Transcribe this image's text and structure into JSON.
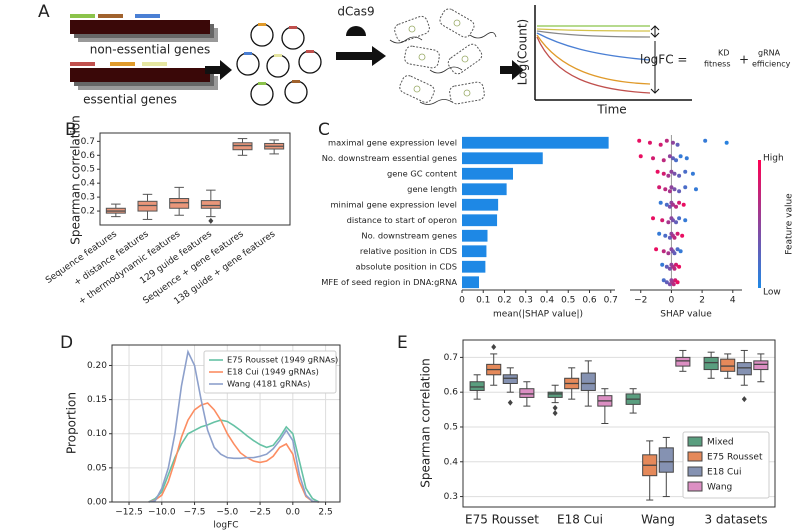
{
  "schematic": {
    "panel": "A",
    "nonessential": "non-essential genes",
    "essential": "essential genes",
    "dcas9": "dCas9",
    "ylabel": "Log(Count)",
    "xlabel": "Time",
    "formula_lhs": "logFC =",
    "term1": "KD",
    "term1_sub": "fitness",
    "plus": "+",
    "term2": "gRNA",
    "term2_sub": "efficiency"
  },
  "chart_data": [
    {
      "type": "box",
      "panel": "B",
      "ylabel": "Spearman correlation",
      "categories": [
        "Sequence features",
        "+ distance features",
        "+ thermodynamic features",
        "129 guide features",
        "Sequence + gene features",
        "138 guide + gene features"
      ],
      "color": "#e9967a",
      "edgecolor": "#555555",
      "whislo": [
        0.16,
        0.14,
        0.17,
        0.16,
        0.6,
        0.61
      ],
      "q1": [
        0.185,
        0.2,
        0.22,
        0.22,
        0.64,
        0.645
      ],
      "median": [
        0.2,
        0.24,
        0.26,
        0.24,
        0.67,
        0.665
      ],
      "q3": [
        0.22,
        0.27,
        0.29,
        0.275,
        0.69,
        0.685
      ],
      "whishi": [
        0.25,
        0.32,
        0.37,
        0.35,
        0.72,
        0.71
      ],
      "outliers": [
        [],
        [],
        [],
        [
          0.13
        ],
        [],
        []
      ],
      "ylim": [
        0.1,
        0.76
      ],
      "yticks": [
        0.2,
        0.3,
        0.4,
        0.5,
        0.6,
        0.7
      ],
      "grid": false
    },
    {
      "type": "barh",
      "panel": "C",
      "xlabel": "mean(|SHAP value|)",
      "categories": [
        "maximal gene expression level",
        "No. downstream essential genes",
        "gene GC content",
        "gene length",
        "minimal gene expression level",
        "distance to start of operon",
        "No. downstream genes",
        "relative position in CDS",
        "absolute position in CDS",
        "MFE of seed region in DNA:gRNA"
      ],
      "values": [
        0.69,
        0.38,
        0.24,
        0.21,
        0.17,
        0.165,
        0.12,
        0.115,
        0.11,
        0.08
      ],
      "color": "#1e88e5",
      "xlim": [
        0,
        0.72
      ],
      "xticks": [
        0,
        0.1,
        0.2,
        0.3,
        0.4,
        0.5,
        0.6,
        0.7
      ]
    },
    {
      "type": "beeswarm",
      "xlabel": "SHAP value",
      "colorbar_label": "Feature value",
      "high_label": "High",
      "low_label": "Low",
      "colors": [
        "#1e88e5",
        "#ff0052"
      ],
      "xlim": [
        -2.7,
        4.6
      ],
      "xticks": [
        {
          "value": -2,
          "label": "−2"
        },
        0,
        2,
        4
      ],
      "x": [
        [
          -2.1,
          -1.4,
          -0.7,
          -0.3,
          0.1,
          0.4,
          2.2,
          3.6
        ],
        [
          -2.0,
          -1.2,
          -0.5,
          -0.1,
          0.1,
          0.3,
          0.6,
          1.0
        ],
        [
          -0.9,
          -0.5,
          -0.2,
          0.0,
          0.2,
          0.5,
          0.9,
          1.4
        ],
        [
          -0.8,
          -0.4,
          -0.1,
          0.0,
          0.2,
          0.5,
          0.9,
          1.6
        ],
        [
          -0.7,
          -0.3,
          -0.1,
          0.0,
          0.1,
          0.3,
          0.5,
          0.8
        ],
        [
          -1.2,
          -0.6,
          -0.2,
          0.0,
          0.1,
          0.3,
          0.5,
          0.9
        ],
        [
          -0.8,
          -0.4,
          -0.1,
          0.0,
          0.1,
          0.2,
          0.4,
          0.7
        ],
        [
          -1.0,
          -0.5,
          -0.2,
          0.0,
          0.1,
          0.2,
          0.4,
          0.6
        ],
        [
          -0.6,
          -0.3,
          -0.1,
          0.0,
          0.1,
          0.2,
          0.3,
          0.5
        ],
        [
          -0.5,
          -0.3,
          -0.1,
          0.0,
          0.05,
          0.15,
          0.25,
          0.4
        ]
      ],
      "feature_value": [
        [
          0.9,
          0.85,
          0.8,
          0.7,
          0.5,
          0.3,
          0.1,
          0.05
        ],
        [
          0.9,
          0.8,
          0.7,
          0.5,
          0.3,
          0.2,
          0.1,
          0.1
        ],
        [
          0.9,
          0.8,
          0.6,
          0.5,
          0.4,
          0.3,
          0.2,
          0.1
        ],
        [
          0.8,
          0.7,
          0.6,
          0.5,
          0.4,
          0.3,
          0.2,
          0.1
        ],
        [
          0.1,
          0.2,
          0.4,
          0.5,
          0.6,
          0.7,
          0.8,
          0.9
        ],
        [
          0.9,
          0.8,
          0.6,
          0.5,
          0.4,
          0.3,
          0.2,
          0.1
        ],
        [
          0.1,
          0.2,
          0.3,
          0.5,
          0.6,
          0.7,
          0.8,
          0.9
        ],
        [
          0.9,
          0.7,
          0.6,
          0.5,
          0.4,
          0.3,
          0.2,
          0.1
        ],
        [
          0.1,
          0.3,
          0.4,
          0.5,
          0.6,
          0.7,
          0.8,
          0.9
        ],
        [
          0.2,
          0.3,
          0.4,
          0.5,
          0.6,
          0.7,
          0.8,
          0.9
        ]
      ]
    },
    {
      "type": "line",
      "panel": "D",
      "xlabel": "logFC",
      "ylabel": "Proportion",
      "x": [
        -11,
        -10.5,
        -10,
        -9.5,
        -9,
        -8.5,
        -8,
        -7.5,
        -7,
        -6.5,
        -6,
        -5.5,
        -5,
        -4.5,
        -4,
        -3.5,
        -3,
        -2.5,
        -2,
        -1.5,
        -1,
        -0.5,
        0,
        0.5,
        1,
        1.5,
        2
      ],
      "series": [
        {
          "name": "E75 Rousset (1949 gRNAs)",
          "color": "#66c2a5",
          "values": [
            0,
            0.005,
            0.015,
            0.04,
            0.065,
            0.085,
            0.1,
            0.105,
            0.11,
            0.113,
            0.117,
            0.12,
            0.118,
            0.112,
            0.105,
            0.097,
            0.09,
            0.084,
            0.08,
            0.083,
            0.095,
            0.11,
            0.1,
            0.06,
            0.02,
            0.005,
            0
          ]
        },
        {
          "name": "E18 Cui (1949 gRNAs)",
          "color": "#fc8d62",
          "values": [
            0,
            0.003,
            0.01,
            0.03,
            0.06,
            0.095,
            0.12,
            0.135,
            0.142,
            0.145,
            0.135,
            0.12,
            0.1,
            0.085,
            0.072,
            0.065,
            0.06,
            0.058,
            0.06,
            0.067,
            0.08,
            0.085,
            0.07,
            0.03,
            0.008,
            0.001,
            0
          ]
        },
        {
          "name": "Wang (4181 gRNAs)",
          "color": "#8da0cb",
          "values": [
            0,
            0.002,
            0.02,
            0.05,
            0.1,
            0.17,
            0.22,
            0.2,
            0.15,
            0.105,
            0.08,
            0.07,
            0.065,
            0.064,
            0.064,
            0.065,
            0.065,
            0.067,
            0.07,
            0.078,
            0.09,
            0.105,
            0.09,
            0.04,
            0.01,
            0.001,
            0
          ]
        }
      ],
      "xlim": [
        -13.8,
        3.6
      ],
      "xticks": [
        {
          "value": -12.5,
          "label": "−12.5"
        },
        {
          "value": -10,
          "label": "−10.0"
        },
        {
          "value": -7.5,
          "label": "−7.5"
        },
        {
          "value": -5,
          "label": "−5.0"
        },
        {
          "value": -2.5,
          "label": "−2.5"
        },
        {
          "value": 0,
          "label": "0.0"
        },
        2.5
      ],
      "ylim": [
        0,
        0.23
      ],
      "yticks": [
        {
          "value": 0,
          "label": "0.00"
        },
        0.05,
        {
          "value": 0.1,
          "label": "0.10"
        },
        0.15,
        {
          "value": 0.2,
          "label": "0.20"
        }
      ],
      "grid": true
    },
    {
      "type": "box",
      "panel": "E",
      "ylabel": "Spearman correlation",
      "edgecolor": "#444444",
      "categories": [
        "E75 Rousset",
        "E18 Cui",
        "Wang",
        "3 datasets"
      ],
      "series": [
        {
          "name": "Mixed",
          "color": "#5a9e7f",
          "whislo": [
            0.58,
            0.57,
            0.54,
            0.64
          ],
          "q1": [
            0.605,
            0.585,
            0.565,
            0.665
          ],
          "median": [
            0.615,
            0.595,
            0.58,
            0.685
          ],
          "q3": [
            0.63,
            0.6,
            0.595,
            0.7
          ],
          "whishi": [
            0.65,
            0.62,
            0.61,
            0.715
          ],
          "outliers": [
            [],
            [
              0.54,
              0.555
            ],
            [],
            []
          ]
        },
        {
          "name": "E75 Rousset",
          "color": "#e5895a",
          "whislo": [
            0.62,
            0.58,
            0.29,
            0.64
          ],
          "q1": [
            0.65,
            0.61,
            0.36,
            0.66
          ],
          "median": [
            0.665,
            0.625,
            0.39,
            0.675
          ],
          "q3": [
            0.68,
            0.64,
            0.42,
            0.695
          ],
          "whishi": [
            0.71,
            0.67,
            0.46,
            0.71
          ],
          "outliers": [
            [
              0.73
            ],
            [],
            [],
            []
          ]
        },
        {
          "name": "E18 Cui",
          "color": "#8592b2",
          "whislo": [
            0.6,
            0.56,
            0.3,
            0.62
          ],
          "q1": [
            0.625,
            0.605,
            0.37,
            0.65
          ],
          "median": [
            0.64,
            0.625,
            0.4,
            0.67
          ],
          "q3": [
            0.65,
            0.655,
            0.44,
            0.685
          ],
          "whishi": [
            0.67,
            0.69,
            0.47,
            0.72
          ],
          "outliers": [
            [
              0.57
            ],
            [],
            [],
            [
              0.58
            ]
          ]
        },
        {
          "name": "Wang",
          "color": "#dc8fc3",
          "whislo": [
            0.56,
            0.51,
            0.66,
            0.63
          ],
          "q1": [
            0.585,
            0.56,
            0.675,
            0.665
          ],
          "median": [
            0.595,
            0.575,
            0.69,
            0.68
          ],
          "q3": [
            0.61,
            0.59,
            0.7,
            0.69
          ],
          "whishi": [
            0.63,
            0.61,
            0.72,
            0.71
          ],
          "outliers": [
            [],
            [],
            [],
            []
          ]
        }
      ],
      "ylim": [
        0.27,
        0.75
      ],
      "yticks": [
        0.3,
        0.4,
        0.5,
        0.6,
        0.7
      ],
      "grid": true
    }
  ]
}
